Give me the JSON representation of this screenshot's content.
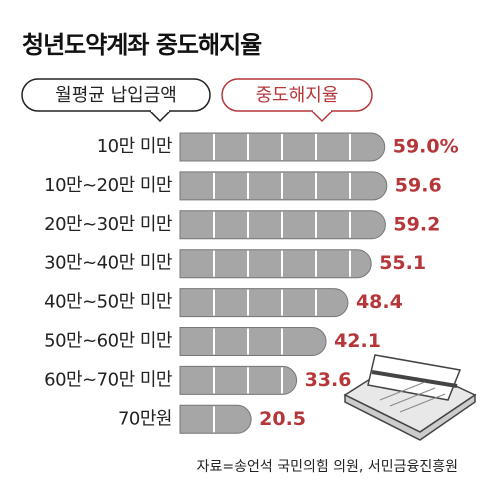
{
  "chart_data": {
    "type": "bar",
    "orientation": "horizontal",
    "title": "청년도약계좌 중도해지율",
    "category_label": "월평균 납입금액",
    "categories": [
      "10만 미만",
      "10만~20만 미만",
      "20만~30만 미만",
      "30만~40만 미만",
      "40만~50만 미만",
      "50만~60만 미만",
      "60만~70만 미만",
      "70만원"
    ],
    "series": [
      {
        "name": "중도해지율",
        "color": "#a6a6a6",
        "values": [
          59.0,
          59.6,
          59.2,
          55.1,
          48.4,
          42.1,
          33.6,
          20.5
        ],
        "value_labels": [
          "59.0%",
          "59.6",
          "59.2",
          "55.1",
          "48.4",
          "42.1",
          "33.6",
          "20.5"
        ],
        "label_color": "#b5373a"
      }
    ],
    "source": "자료=송언석 국민의힘 의원, 서민금융진흥원"
  }
}
